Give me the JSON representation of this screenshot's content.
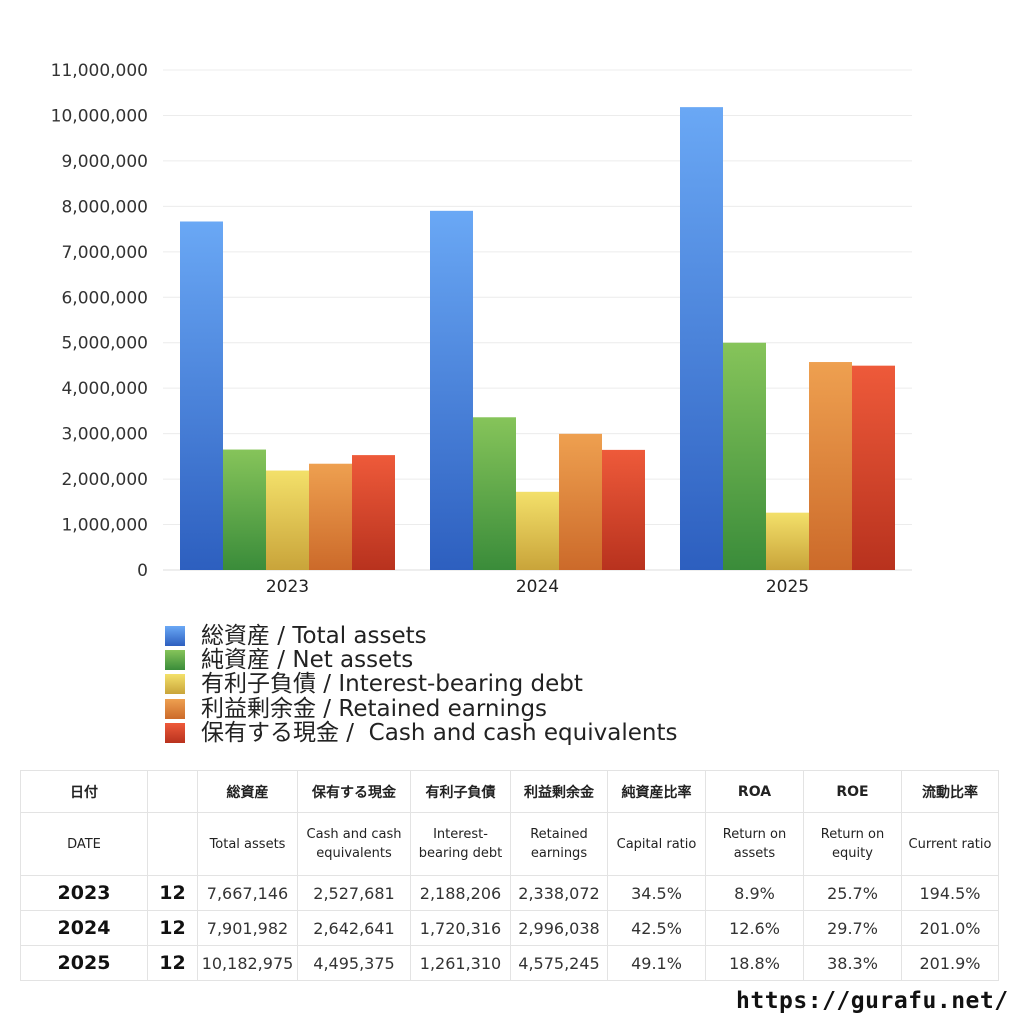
{
  "chart_data": {
    "type": "bar",
    "categories": [
      "2023",
      "2024",
      "2025"
    ],
    "ylim": [
      0,
      11000000
    ],
    "yticks": [
      "0",
      "1,000,000",
      "2,000,000",
      "3,000,000",
      "4,000,000",
      "5,000,000",
      "6,000,000",
      "7,000,000",
      "8,000,000",
      "9,000,000",
      "10,000,000",
      "11,000,000"
    ],
    "grid": true,
    "legend_position": "bottom",
    "series": [
      {
        "name": "総資産 / Total assets",
        "values": [
          7667146,
          7901982,
          10182975
        ],
        "color_top": "#6aa8f5",
        "color_bottom": "#2d5fbf"
      },
      {
        "name": "純資産 / Net assets",
        "values": [
          2650000,
          3360000,
          5000000
        ],
        "color_top": "#86c45a",
        "color_bottom": "#3a8c3a"
      },
      {
        "name": "有利子負債 / Interest-bearing debt",
        "values": [
          2188206,
          1720316,
          1261310
        ],
        "color_top": "#f3e06a",
        "color_bottom": "#c9a43a"
      },
      {
        "name": "利益剰余金 / Retained earnings",
        "values": [
          2338072,
          2996038,
          4575245
        ],
        "color_top": "#eea050",
        "color_bottom": "#cc6a2a"
      },
      {
        "name": "保有する現金 /  Cash and cash equivalents",
        "values": [
          2527681,
          2642641,
          4495375
        ],
        "color_top": "#ee5a3a",
        "color_bottom": "#b8321e"
      }
    ]
  },
  "table": {
    "headers_jp": [
      "日付",
      "",
      "総資産",
      "保有する現金",
      "有利子負債",
      "利益剰余金",
      "純資産比率",
      "ROA",
      "ROE",
      "流動比率"
    ],
    "headers_en": [
      "DATE",
      "",
      "Total assets",
      "Cash and cash equivalents",
      "Interest-bearing debt",
      "Retained earnings",
      "Capital ratio",
      "Return on assets",
      "Return on equity",
      "Current ratio"
    ],
    "rows": [
      [
        "2023",
        "12",
        "7,667,146",
        "2,527,681",
        "2,188,206",
        "2,338,072",
        "34.5%",
        "8.9%",
        "25.7%",
        "194.5%"
      ],
      [
        "2024",
        "12",
        "7,901,982",
        "2,642,641",
        "1,720,316",
        "2,996,038",
        "42.5%",
        "12.6%",
        "29.7%",
        "201.0%"
      ],
      [
        "2025",
        "12",
        "10,182,975",
        "4,495,375",
        "1,261,310",
        "4,575,245",
        "49.1%",
        "18.8%",
        "38.3%",
        "201.9%"
      ]
    ]
  },
  "footer": {
    "url": "https://gurafu.net/"
  }
}
